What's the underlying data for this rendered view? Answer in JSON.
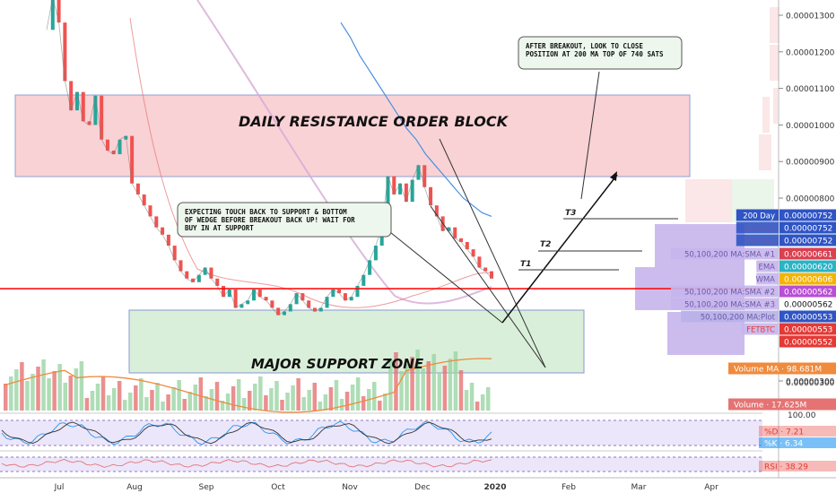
{
  "chart_data": {
    "type": "line",
    "pair_label": "FETBTC",
    "price_axis": {
      "ticks": [
        "0.00001300",
        "0.00001200",
        "0.00001100",
        "0.00001000",
        "0.00000900",
        "0.00000800",
        "0.00000300"
      ],
      "tick_values": [
        1.3e-05,
        1.2e-05,
        1.1e-05,
        1e-05,
        9e-06,
        8e-06,
        3e-06
      ],
      "ylim": [
        2.7e-06,
        1.36e-05
      ]
    },
    "time_axis": {
      "labels": [
        "Jul",
        "Aug",
        "Sep",
        "Oct",
        "Nov",
        "Dec",
        "2020",
        "Feb",
        "Mar",
        "Apr"
      ]
    },
    "price_series": {
      "name": "FETBTC",
      "values": [
        1.26e-05,
        1.35e-05,
        1.28e-05,
        1.12e-05,
        1.04e-05,
        1.09e-05,
        1.01e-05,
        1e-05,
        1.08e-05,
        9.6e-06,
        9.3e-06,
        9.2e-06,
        9.6e-06,
        9.7e-06,
        8.4e-06,
        8.1e-06,
        7.8e-06,
        7.5e-06,
        7.2e-06,
        7e-06,
        6.7e-06,
        6.3e-06,
        6e-06,
        5.8e-06,
        5.7e-06,
        5.9e-06,
        6.1e-06,
        5.8e-06,
        5.6e-06,
        5.3e-06,
        5.5e-06,
        5e-06,
        5.1e-06,
        5.2e-06,
        5.5e-06,
        5.3e-06,
        5.2e-06,
        5e-06,
        4.8e-06,
        4.9e-06,
        5.1e-06,
        5.4e-06,
        5.2e-06,
        5e-06,
        4.9e-06,
        5e-06,
        5.3e-06,
        5.5e-06,
        5.4e-06,
        5.2e-06,
        5.3e-06,
        5.6e-06,
        5.9e-06,
        6.3e-06,
        6.7e-06,
        7.2e-06,
        8.6e-06,
        8.1e-06,
        8.4e-06,
        7.9e-06,
        8.5e-06,
        8.9e-06,
        8.3e-06,
        7.8e-06,
        7.5e-06,
        7.1e-06,
        7.2e-06,
        6.9e-06,
        6.8e-06,
        6.6e-06,
        6.4e-06,
        6.1e-06,
        6e-06,
        5.8e-06
      ]
    },
    "sma200_series": {
      "name": "200 Day",
      "values": [
        1.28e-05,
        1.24e-05,
        1.19e-05,
        1.15e-05,
        1.11e-05,
        1.07e-05,
        1.03e-05,
        9.9e-06,
        9.6e-06,
        9.2e-06,
        8.9e-06,
        8.6e-06,
        8.3e-06,
        8e-06,
        7.8e-06,
        7.6e-06,
        7.5e-06
      ]
    },
    "horizontal_levels": [
      {
        "name": "200 Day",
        "value": "0.00000752",
        "color": "#2f54c4",
        "v": 7.52e-06
      },
      {
        "name": "200 Day",
        "value": "0.00000752",
        "color": "#2f54c4",
        "v": 7.52e-06
      },
      {
        "name": "200 Day",
        "value": "0.00000752",
        "color": "#2f54c4",
        "v": 7.52e-06
      },
      {
        "name": "50,100,200 MA:SMA #1",
        "value": "0.00000661",
        "color": "#d94050",
        "v": 6.61e-06
      },
      {
        "name": "EMA",
        "value": "0.00000620",
        "color": "#2ab3c5",
        "v": 6.2e-06
      },
      {
        "name": "WMA",
        "value": "0.00000606",
        "color": "#f5b400",
        "v": 6.06e-06
      },
      {
        "name": "50,100,200 MA:SMA #2",
        "value": "0.00000562",
        "color": "#b84fd4",
        "v": 5.62e-06
      },
      {
        "name": "50,100,200 MA:SMA #3",
        "value": "0.00000562",
        "color": "#ffffff",
        "v": 5.62e-06
      },
      {
        "name": "50,100,200 MA:Plot",
        "value": "0.00000553",
        "color": "#2f54c4",
        "v": 5.53e-06
      },
      {
        "name": "FETBTC",
        "value": "0.00000553",
        "color": "#e53935",
        "v": 5.53e-06
      },
      {
        "name": "",
        "value": "0.00000552",
        "color": "#e53935",
        "v": 5.52e-06
      }
    ],
    "volume_labels": [
      {
        "name": "Volume MA",
        "value": "98.681M",
        "color": "#f08a3c"
      },
      {
        "name": "Volume",
        "value": "17.625M",
        "color": "#e57373"
      }
    ],
    "stoch_panel": {
      "axis_label": "100.00",
      "d": {
        "name": "%D",
        "value": "7.21",
        "color": "#e53935"
      },
      "k": {
        "name": "%K",
        "value": "6.34",
        "color": "#2196f3"
      }
    },
    "rsi_panel": {
      "rsi": {
        "name": "RSI",
        "value": "38.29",
        "color": "#e53935"
      }
    },
    "annotations": {
      "resistance": "DAILY RESISTANCE ORDER BLOCK",
      "support": "MAJOR SUPPORT ZONE",
      "note_left": "EXPECTING TOUCH BACK TO SUPPORT & BOTTOM OF WEDGE BEFORE BREAKOUT BACK UP! WAIT FOR BUY IN AT SUPPORT",
      "note_right": "AFTER BREAKOUT, LOOK TO CLOSE POSITION AT 200 MA TOP OF 740 SATS",
      "targets": [
        "T1",
        "T2",
        "T3"
      ]
    },
    "colors": {
      "resistance_fill": "#f8c4c8",
      "support_fill": "#d2ecd2",
      "up": "#26a69a",
      "down": "#ef5350",
      "current_price_line": "#ff0000"
    }
  }
}
